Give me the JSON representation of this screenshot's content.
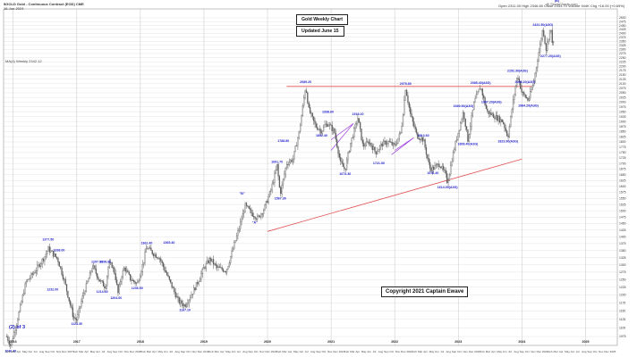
{
  "header": {
    "symbol_line": "$GOLD Gold - Continuous Contract (EOD) CME",
    "date_line": "16-Jun-2024",
    "quote_line": "Open 2311.00   High 2346.80   Close 2333.70   Volume 944K   Chg +16.00 (+0.69%)",
    "ma_label": "MA(4) Weekly 2342.12",
    "watermark": "@ StockCharts.com"
  },
  "boxes": {
    "title": "Gold Weekly Chart",
    "updated": "Updated June 15",
    "copyright": "Copyright 2021 Captain Ewave"
  },
  "colors": {
    "candles": "#5a5a5a",
    "labels": "#1e1ecc",
    "trendline": "#e05050",
    "wedge": "#a040e0",
    "grid": "#e4e4e4"
  },
  "chart_data": {
    "type": "candlestick",
    "title": "Gold Weekly Chart",
    "y_scale": "log",
    "ylim": [
      1050,
      2560
    ],
    "xlim": [
      2015.85,
      2025.5
    ],
    "yticks": [
      1075,
      1100,
      1125,
      1150,
      1175,
      1200,
      1225,
      1250,
      1275,
      1300,
      1325,
      1350,
      1375,
      1400,
      1425,
      1450,
      1475,
      1500,
      1525,
      1550,
      1575,
      1600,
      1625,
      1650,
      1675,
      1700,
      1725,
      1750,
      1775,
      1800,
      1825,
      1850,
      1875,
      1900,
      1925,
      1950,
      1975,
      2000,
      2025,
      2050,
      2075,
      2100,
      2125,
      2150,
      2175,
      2200,
      2225,
      2250,
      2275,
      2300,
      2325,
      2350,
      2375,
      2400,
      2425,
      2450,
      2475,
      2500
    ],
    "month_labels": [
      "Nov",
      "Mar",
      "Apr",
      "May",
      "Jun",
      "Jul",
      "Aug",
      "Sep",
      "Oct",
      "Nov",
      "Dec",
      "2017",
      "Feb",
      "Mar",
      "Apr",
      "May",
      "Jun",
      "Jul",
      "Aug",
      "Sep",
      "Oct",
      "Nov",
      "Dec",
      "2018",
      "Feb",
      "Mar",
      "Apr",
      "May",
      "Jun",
      "Jul",
      "Aug",
      "Sep",
      "Oct",
      "Nov",
      "Dec",
      "2019",
      "Feb",
      "Mar",
      "Apr",
      "May",
      "Jun",
      "Jul",
      "Aug",
      "Sep",
      "Oct",
      "Nov",
      "Dec",
      "2020",
      "Feb",
      "Mar",
      "Apr",
      "May",
      "Jun",
      "Jul",
      "Aug",
      "Sep",
      "Oct",
      "Nov",
      "Dec",
      "2021",
      "Feb",
      "Mar",
      "Apr",
      "May",
      "Jun",
      "Jul",
      "Aug",
      "Sep",
      "Oct",
      "Nov",
      "Dec",
      "2022",
      "Feb",
      "Mar",
      "Apr",
      "May",
      "Jun",
      "Jul",
      "Aug",
      "Sep",
      "Oct",
      "Nov",
      "Dec",
      "2023",
      "Feb",
      "Mar",
      "Apr",
      "May",
      "Jun",
      "Jul",
      "Aug",
      "Sep",
      "Oct",
      "Nov",
      "Dec",
      "2024",
      "Feb",
      "Mar",
      "Apr",
      "May",
      "Jun",
      "Jul",
      "Aug",
      "Sep",
      "Oct",
      "Nov",
      "Dec",
      "2025"
    ],
    "year_labels": [
      "2016",
      "2017",
      "2018",
      "2019",
      "2020",
      "2021",
      "2022",
      "2023",
      "2024",
      "2025"
    ],
    "price_path": [
      [
        2015.9,
        1075
      ],
      [
        2015.96,
        1050
      ],
      [
        2016.05,
        1110
      ],
      [
        2016.2,
        1240
      ],
      [
        2016.35,
        1280
      ],
      [
        2016.5,
        1330
      ],
      [
        2016.55,
        1357
      ],
      [
        2016.7,
        1320
      ],
      [
        2016.8,
        1250
      ],
      [
        2016.95,
        1130
      ],
      [
        2017.0,
        1124
      ],
      [
        2017.1,
        1200
      ],
      [
        2017.2,
        1260
      ],
      [
        2017.25,
        1297
      ],
      [
        2017.35,
        1250
      ],
      [
        2017.45,
        1225
      ],
      [
        2017.5,
        1298
      ],
      [
        2017.55,
        1300
      ],
      [
        2017.6,
        1270
      ],
      [
        2017.65,
        1205
      ],
      [
        2017.7,
        1260
      ],
      [
        2017.75,
        1290
      ],
      [
        2017.85,
        1250
      ],
      [
        2017.95,
        1236
      ],
      [
        2018.05,
        1310
      ],
      [
        2018.1,
        1363
      ],
      [
        2018.2,
        1340
      ],
      [
        2018.3,
        1325
      ],
      [
        2018.45,
        1250
      ],
      [
        2018.6,
        1180
      ],
      [
        2018.7,
        1167
      ],
      [
        2018.8,
        1200
      ],
      [
        2018.9,
        1240
      ],
      [
        2019.0,
        1290
      ],
      [
        2019.1,
        1320
      ],
      [
        2019.2,
        1290
      ],
      [
        2019.35,
        1280
      ],
      [
        2019.45,
        1350
      ],
      [
        2019.55,
        1430
      ],
      [
        2019.65,
        1520
      ],
      [
        2019.75,
        1490
      ],
      [
        2019.85,
        1470
      ],
      [
        2019.95,
        1510
      ],
      [
        2020.05,
        1580
      ],
      [
        2020.15,
        1690
      ],
      [
        2020.2,
        1567
      ],
      [
        2020.3,
        1700
      ],
      [
        2020.4,
        1720
      ],
      [
        2020.5,
        1850
      ],
      [
        2020.6,
        2089
      ],
      [
        2020.65,
        1960
      ],
      [
        2020.75,
        1880
      ],
      [
        2020.85,
        1852
      ],
      [
        2020.9,
        1880
      ],
      [
        2020.95,
        1890
      ],
      [
        2021.05,
        1850
      ],
      [
        2021.15,
        1700
      ],
      [
        2021.22,
        1673
      ],
      [
        2021.3,
        1790
      ],
      [
        2021.42,
        1919
      ],
      [
        2021.5,
        1780
      ],
      [
        2021.6,
        1800
      ],
      [
        2021.7,
        1750
      ],
      [
        2021.8,
        1790
      ],
      [
        2021.9,
        1800
      ],
      [
        2022.0,
        1780
      ],
      [
        2022.1,
        1850
      ],
      [
        2022.17,
        2078
      ],
      [
        2022.25,
        1930
      ],
      [
        2022.35,
        1830
      ],
      [
        2022.45,
        1810
      ],
      [
        2022.55,
        1680
      ],
      [
        2022.6,
        1676
      ],
      [
        2022.7,
        1700
      ],
      [
        2022.8,
        1650
      ],
      [
        2022.83,
        1614
      ],
      [
        2022.9,
        1720
      ],
      [
        2023.0,
        1850
      ],
      [
        2023.08,
        1950
      ],
      [
        2023.15,
        1810
      ],
      [
        2023.25,
        2000
      ],
      [
        2023.35,
        2085
      ],
      [
        2023.45,
        1950
      ],
      [
        2023.55,
        1930
      ],
      [
        2023.7,
        1900
      ],
      [
        2023.78,
        1823
      ],
      [
        2023.85,
        1980
      ],
      [
        2023.93,
        2152
      ],
      [
        2024.0,
        2050
      ],
      [
        2024.1,
        2010
      ],
      [
        2024.18,
        2100
      ],
      [
        2024.25,
        2250
      ],
      [
        2024.33,
        2431
      ],
      [
        2024.38,
        2300
      ],
      [
        2024.45,
        2440
      ],
      [
        2024.47,
        2360
      ],
      [
        2024.5,
        2330
      ]
    ],
    "annotations": [
      {
        "x": 2015.96,
        "y": 1046,
        "text": "1046.40",
        "pos": "below"
      },
      {
        "x": 2016.55,
        "y": 1377,
        "text": "1377.50",
        "pos": "above"
      },
      {
        "x": 2016.72,
        "y": 1338,
        "text": "1338.00",
        "pos": "above"
      },
      {
        "x": 2016.62,
        "y": 1232,
        "text": "1232.00",
        "pos": "below"
      },
      {
        "x": 2017.0,
        "y": 1124,
        "text": "1124.30",
        "pos": "below"
      },
      {
        "x": 2017.32,
        "y": 1297,
        "text": "1297.90",
        "pos": "above"
      },
      {
        "x": 2017.45,
        "y": 1298,
        "text": "1298.80",
        "pos": "above"
      },
      {
        "x": 2017.4,
        "y": 1225,
        "text": "1214.30",
        "pos": "below"
      },
      {
        "x": 2017.62,
        "y": 1205,
        "text": "1204.60",
        "pos": "below"
      },
      {
        "x": 2017.95,
        "y": 1236,
        "text": "1236.50",
        "pos": "below"
      },
      {
        "x": 2018.1,
        "y": 1363,
        "text": "1362.40",
        "pos": "above"
      },
      {
        "x": 2018.45,
        "y": 1365,
        "text": "1365.40",
        "pos": "above"
      },
      {
        "x": 2018.7,
        "y": 1167,
        "text": "1167.10",
        "pos": "below"
      },
      {
        "x": 2019.6,
        "y": 1555,
        "text": "\"B\"",
        "pos": "above"
      },
      {
        "x": 2019.8,
        "y": 1470,
        "text": "\"A\"",
        "pos": "below"
      },
      {
        "x": 2020.15,
        "y": 1690,
        "text": "1691.70",
        "pos": "above"
      },
      {
        "x": 2020.2,
        "y": 1567,
        "text": "1567.30",
        "pos": "below"
      },
      {
        "x": 2020.25,
        "y": 1788,
        "text": "1788.80",
        "pos": "above"
      },
      {
        "x": 2020.6,
        "y": 2089,
        "text": "2089.20",
        "pos": "above"
      },
      {
        "x": 2020.85,
        "y": 1852,
        "text": "1852.40",
        "pos": "below"
      },
      {
        "x": 2020.95,
        "y": 1930,
        "text": "1938.60",
        "pos": "above"
      },
      {
        "x": 2021.22,
        "y": 1673,
        "text": "1673.30",
        "pos": "below"
      },
      {
        "x": 2021.42,
        "y": 1919,
        "text": "1919.20",
        "pos": "above"
      },
      {
        "x": 2021.75,
        "y": 1720,
        "text": "1721.50",
        "pos": "below"
      },
      {
        "x": 2022.17,
        "y": 2078,
        "text": "2078.80",
        "pos": "above"
      },
      {
        "x": 2022.45,
        "y": 1812,
        "text": "1813.60",
        "pos": "above"
      },
      {
        "x": 2022.6,
        "y": 1676,
        "text": "1676.40",
        "pos": "below"
      },
      {
        "x": 2022.83,
        "y": 1614,
        "text": "1614.00(A3G)",
        "pos": "below"
      },
      {
        "x": 2023.08,
        "y": 1960,
        "text": "1949.90(A3G)",
        "pos": "above"
      },
      {
        "x": 2023.15,
        "y": 1810,
        "text": "1808.40(A3G)",
        "pos": "below"
      },
      {
        "x": 2023.35,
        "y": 2085,
        "text": "2085.40(A3G)",
        "pos": "above"
      },
      {
        "x": 2023.52,
        "y": 1980,
        "text": "1987.20(A3G)",
        "pos": "above"
      },
      {
        "x": 2023.78,
        "y": 1823,
        "text": "1823.90(A3G)",
        "pos": "below"
      },
      {
        "x": 2023.93,
        "y": 2152,
        "text": "2152.30(A3G)",
        "pos": "above"
      },
      {
        "x": 2024.05,
        "y": 2090,
        "text": "2088.20(A3G)",
        "pos": "above"
      },
      {
        "x": 2024.1,
        "y": 2005,
        "text": "1984.20(A3G)",
        "pos": "below"
      },
      {
        "x": 2024.33,
        "y": 2431,
        "text": "2431.50(A3G)",
        "pos": "above"
      },
      {
        "x": 2024.45,
        "y": 2286,
        "text": "2277.20(A3G)",
        "pos": "below"
      },
      {
        "x": 2024.55,
        "y": 2590,
        "text": "(B)",
        "pos": "above"
      }
    ],
    "trendlines": [
      {
        "x1": 2020.3,
        "y1": 2085,
        "x2": 2024.15,
        "y2": 2085
      },
      {
        "x1": 2020.0,
        "y1": 1420,
        "x2": 2024.0,
        "y2": 1720
      }
    ],
    "corner_text": "(2) of 3"
  }
}
